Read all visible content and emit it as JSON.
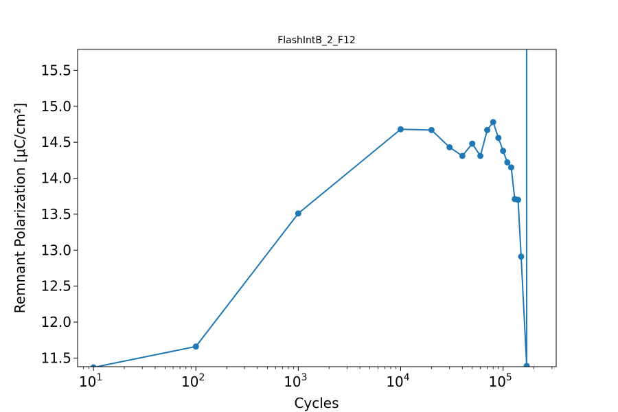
{
  "chart_data": {
    "type": "line",
    "title": "FlashIntB_2_F12",
    "xlabel": "Cycles",
    "ylabel": "Remnant Polarization [μC/cm²]",
    "xscale": "log",
    "xlim": [
      7,
      330000
    ],
    "ylim": [
      11.38,
      15.79
    ],
    "grid": false,
    "color": "#1f77b4",
    "x_ticks": [
      {
        "value": 10,
        "base": "10",
        "exp": "1"
      },
      {
        "value": 100,
        "base": "10",
        "exp": "2"
      },
      {
        "value": 1000,
        "base": "10",
        "exp": "3"
      },
      {
        "value": 10000,
        "base": "10",
        "exp": "4"
      },
      {
        "value": 100000,
        "base": "10",
        "exp": "5"
      }
    ],
    "y_ticks": [
      {
        "value": 11.5,
        "label": "11.5"
      },
      {
        "value": 12.0,
        "label": "12.0"
      },
      {
        "value": 12.5,
        "label": "12.5"
      },
      {
        "value": 13.0,
        "label": "13.0"
      },
      {
        "value": 13.5,
        "label": "13.5"
      },
      {
        "value": 14.0,
        "label": "14.0"
      },
      {
        "value": 14.5,
        "label": "14.5"
      },
      {
        "value": 15.0,
        "label": "15.0"
      },
      {
        "value": 15.5,
        "label": "15.5"
      }
    ],
    "series": [
      {
        "x": [
          10,
          100,
          1000,
          10000,
          20000,
          30000,
          40000,
          50000,
          60000,
          70000,
          80000,
          90000,
          100000,
          110000,
          120000,
          130000,
          140000,
          150000,
          170000
        ],
        "y": [
          11.37,
          11.66,
          13.51,
          14.68,
          14.67,
          14.43,
          14.31,
          14.48,
          14.31,
          14.67,
          14.78,
          14.56,
          14.38,
          14.22,
          14.15,
          13.71,
          13.7,
          12.91,
          11.39
        ],
        "outlier": {
          "x": 170000,
          "y": 18.5
        }
      }
    ]
  }
}
